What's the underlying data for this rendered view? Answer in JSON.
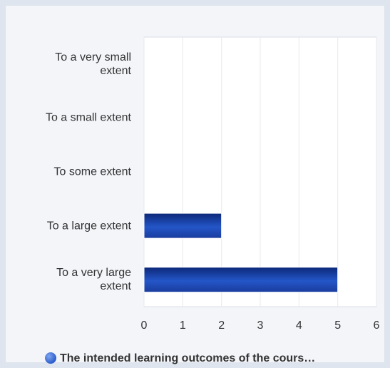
{
  "chart_data": {
    "type": "bar",
    "orientation": "horizontal",
    "categories": [
      "To a very small extent",
      "To a small extent",
      "To some extent",
      "To a large extent",
      "To a very large extent"
    ],
    "series": [
      {
        "name": "The intended learning outcomes of the cours…",
        "color": "#2456c8",
        "values": [
          0,
          0,
          0,
          2,
          5
        ]
      }
    ],
    "xlim": [
      0,
      6
    ],
    "xticks": [
      0,
      1,
      2,
      3,
      4,
      5,
      6
    ],
    "grid": true,
    "legend": "bottom"
  }
}
